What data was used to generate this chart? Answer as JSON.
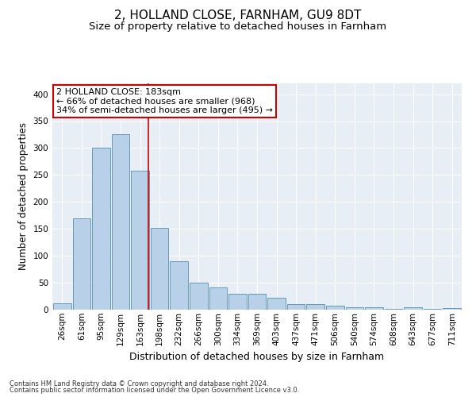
{
  "title": "2, HOLLAND CLOSE, FARNHAM, GU9 8DT",
  "subtitle": "Size of property relative to detached houses in Farnham",
  "xlabel": "Distribution of detached houses by size in Farnham",
  "ylabel": "Number of detached properties",
  "footnote1": "Contains HM Land Registry data © Crown copyright and database right 2024.",
  "footnote2": "Contains public sector information licensed under the Open Government Licence v3.0.",
  "bar_labels": [
    "26sqm",
    "61sqm",
    "95sqm",
    "129sqm",
    "163sqm",
    "198sqm",
    "232sqm",
    "266sqm",
    "300sqm",
    "334sqm",
    "369sqm",
    "403sqm",
    "437sqm",
    "471sqm",
    "506sqm",
    "540sqm",
    "574sqm",
    "608sqm",
    "643sqm",
    "677sqm",
    "711sqm"
  ],
  "bar_values": [
    12,
    170,
    301,
    325,
    258,
    152,
    90,
    50,
    42,
    30,
    30,
    22,
    11,
    10,
    7,
    4,
    4,
    1,
    4,
    1,
    3
  ],
  "bar_color": "#b8d0e8",
  "bar_edgecolor": "#6699bb",
  "bg_color": "#e8eef6",
  "grid_color": "#ffffff",
  "vline_x": 4.42,
  "vline_color": "#cc0000",
  "annotation_text": "2 HOLLAND CLOSE: 183sqm\n← 66% of detached houses are smaller (968)\n34% of semi-detached houses are larger (495) →",
  "annotation_box_facecolor": "#ffffff",
  "annotation_box_edgecolor": "#cc0000",
  "ylim": [
    0,
    420
  ],
  "yticks": [
    0,
    50,
    100,
    150,
    200,
    250,
    300,
    350,
    400
  ],
  "title_fontsize": 11,
  "subtitle_fontsize": 9.5,
  "xlabel_fontsize": 9,
  "ylabel_fontsize": 8.5,
  "tick_fontsize": 7.5,
  "annot_fontsize": 8,
  "footnote_fontsize": 6
}
